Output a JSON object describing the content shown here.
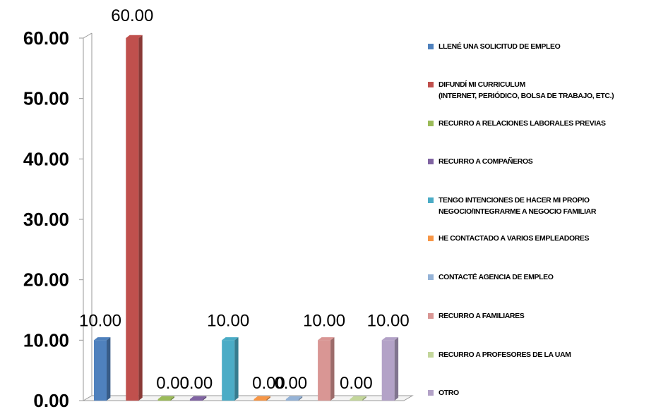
{
  "chart_data": {
    "type": "bar",
    "title": "",
    "xlabel": "",
    "ylabel": "",
    "ylim": [
      0,
      60
    ],
    "yticks": [
      "0.00",
      "10.00",
      "20.00",
      "30.00",
      "40.00",
      "50.00",
      "60.00"
    ],
    "grid": false,
    "legend_position": "right",
    "series": [
      {
        "name": "LLENÉ UNA SOLICITUD DE EMPLEO",
        "value": 10,
        "label": "10.00",
        "color": "#4F81BD"
      },
      {
        "name": "DIFUNDÍ MI CURRICULUM\n(INTERNET, PERIÓDICO, BOLSA DE TRABAJO, ETC.)",
        "value": 60,
        "label": "60.00",
        "color": "#C0504D"
      },
      {
        "name": "RECURRO A RELACIONES LABORALES PREVIAS",
        "value": 0,
        "label": "0.00",
        "color": "#9BBB59"
      },
      {
        "name": "RECURRO A COMPAÑEROS",
        "value": 0,
        "label": "0.00",
        "color": "#8064A2"
      },
      {
        "name": "TENGO INTENCIONES DE HACER MI PROPIO\nNEGOCIO/INTEGRARME A NEGOCIO FAMILIAR",
        "value": 10,
        "label": "10.00",
        "color": "#4BACC6"
      },
      {
        "name": "HE CONTACTADO A VARIOS EMPLEADORES",
        "value": 0,
        "label": "0.00",
        "color": "#F79646"
      },
      {
        "name": "CONTACTÉ AGENCIA DE EMPLEO",
        "value": 0,
        "label": "0.00",
        "color": "#95B3D7"
      },
      {
        "name": "RECURRO A FAMILIARES",
        "value": 10,
        "label": "10.00",
        "color": "#D99694"
      },
      {
        "name": "RECURRO A PROFESORES DE LA UAM",
        "value": 0,
        "label": "0.00",
        "color": "#C3D69B"
      },
      {
        "name": "OTRO",
        "value": 10,
        "label": "10.00",
        "color": "#B3A2C7"
      }
    ]
  }
}
